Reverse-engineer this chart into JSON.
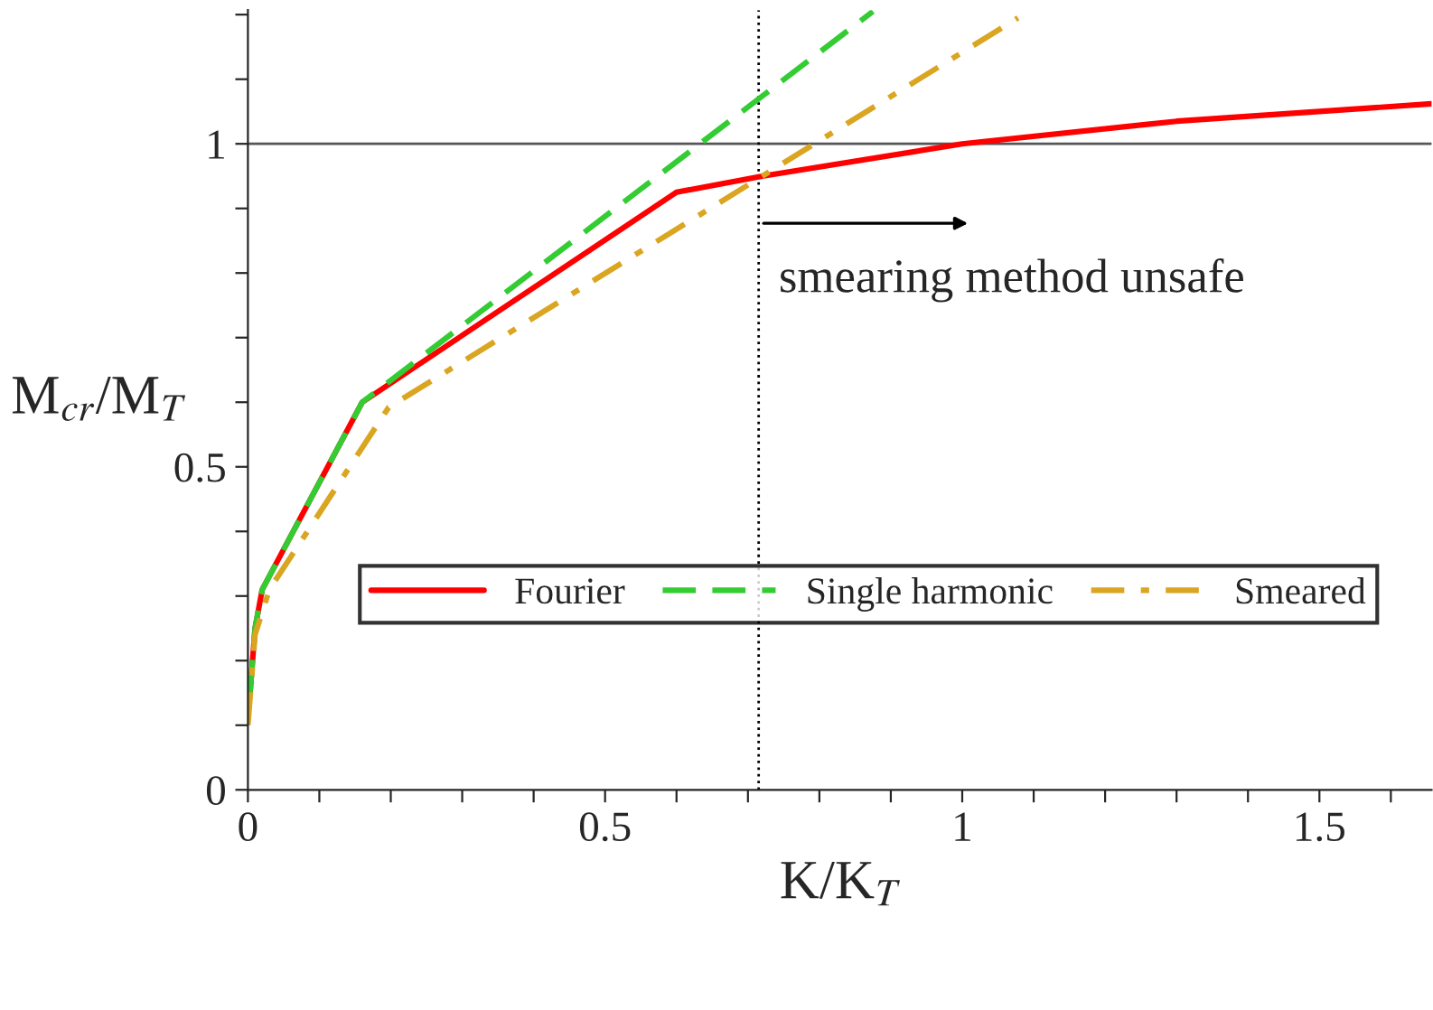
{
  "chart_data": {
    "type": "line",
    "xlabel": "K/K$_{T}$",
    "ylabel": "M$_{cr}$/M$_{T}$",
    "series": [
      {
        "name": "Fourier",
        "color": "#ff0000",
        "line_style": "solid",
        "x": [
          0.003,
          0.01,
          0.02,
          0.16,
          0.6,
          0.72,
          1.0,
          1.3,
          1.657
        ],
        "values": [
          0.15,
          0.25,
          0.31,
          0.6,
          0.925,
          0.95,
          1.0,
          1.035,
          1.062
        ]
      },
      {
        "name": "Single harmonic",
        "color": "#33cc33",
        "line_style": "dashed",
        "x": [
          0.003,
          0.01,
          0.02,
          0.16,
          0.875
        ],
        "values": [
          0.15,
          0.25,
          0.31,
          0.6,
          1.205
        ]
      },
      {
        "name": "Smeared",
        "color": "#daa520",
        "line_style": "dashdot",
        "x": [
          0,
          0.01,
          0.03,
          0.197,
          1.078
        ],
        "values": [
          0.1,
          0.24,
          0.31,
          0.592,
          1.195
        ]
      }
    ],
    "xlim": [
      0,
      1.657
    ],
    "ylim": [
      0,
      1.207
    ],
    "xticks": [
      0,
      {
        "value": 0.1,
        "label": null
      },
      {
        "value": 0.2,
        "label": null
      },
      {
        "value": 0.3,
        "label": null
      },
      {
        "value": 0.4,
        "label": null
      },
      0.5,
      {
        "value": 0.6,
        "label": null
      },
      {
        "value": 0.7,
        "label": null
      },
      {
        "value": 0.8,
        "label": null
      },
      {
        "value": 0.9,
        "label": null
      },
      1,
      {
        "value": 1.1,
        "label": null
      },
      {
        "value": 1.2,
        "label": null
      },
      {
        "value": 1.3,
        "label": null
      },
      {
        "value": 1.4,
        "label": null
      },
      1.5,
      {
        "value": 1.6,
        "label": null
      }
    ],
    "yticks": [
      0,
      {
        "value": 0.1,
        "label": null
      },
      {
        "value": 0.2,
        "label": null
      },
      {
        "value": 0.3,
        "label": null
      },
      {
        "value": 0.4,
        "label": null
      },
      0.5,
      {
        "value": 0.6,
        "label": null
      },
      {
        "value": 0.7,
        "label": null
      },
      {
        "value": 0.8,
        "label": null
      },
      {
        "value": 0.9,
        "label": null
      },
      1,
      {
        "value": 1.1,
        "label": null
      },
      {
        "value": 1.2,
        "label": null
      }
    ],
    "ref_lines": [
      {
        "axis": "y",
        "value": 1,
        "color": "#555555",
        "line_style": "solid"
      },
      {
        "axis": "x",
        "value": 0.715,
        "color": "#000000",
        "line_style": "dotted"
      }
    ],
    "annotations": [
      {
        "text": "smearing method unsafe",
        "x": 0.715,
        "y": 0.877
      }
    ],
    "legend": "lower right",
    "grid": false
  }
}
